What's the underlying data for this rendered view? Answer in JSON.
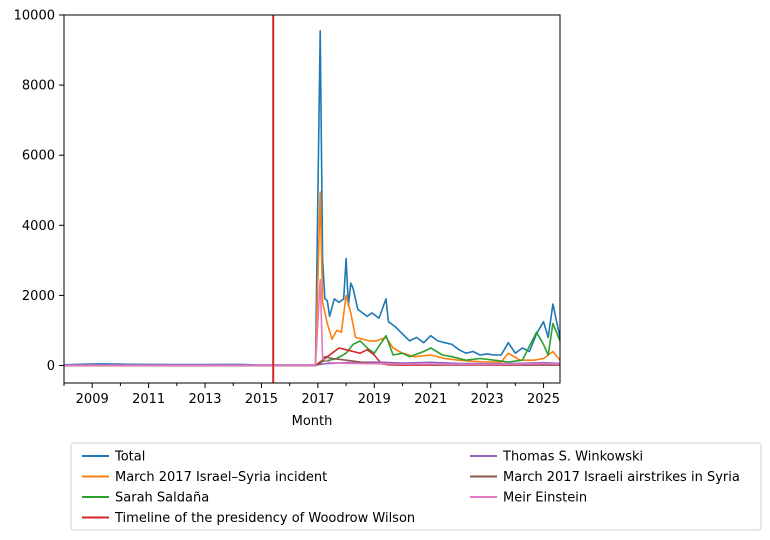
{
  "chart_data": {
    "type": "line",
    "title": "",
    "xlabel": "Month",
    "ylabel": "",
    "xlim": [
      "2008-01",
      "2025-08"
    ],
    "ylim": [
      -500,
      10000
    ],
    "x_ticks": [
      "2009",
      "2011",
      "2013",
      "2015",
      "2017",
      "2019",
      "2021",
      "2023",
      "2025"
    ],
    "y_ticks": [
      0,
      2000,
      4000,
      6000,
      8000,
      10000
    ],
    "grid": false,
    "legend_position": "below plot, two columns",
    "vertical_marker": {
      "x": "2015-06",
      "color": "#d62728"
    },
    "series": [
      {
        "name": "Total",
        "color": "#1f77b4",
        "points": [
          [
            "2008-01",
            20
          ],
          [
            "2008-06",
            30
          ],
          [
            "2009-01",
            40
          ],
          [
            "2009-06",
            45
          ],
          [
            "2010-01",
            35
          ],
          [
            "2011-01",
            30
          ],
          [
            "2012-01",
            28
          ],
          [
            "2013-01",
            25
          ],
          [
            "2014-01",
            30
          ],
          [
            "2014-06",
            25
          ],
          [
            "2015-01",
            10
          ],
          [
            "2016-01",
            10
          ],
          [
            "2016-12",
            10
          ],
          [
            "2017-02",
            9550
          ],
          [
            "2017-03",
            3000
          ],
          [
            "2017-04",
            1900
          ],
          [
            "2017-05",
            1850
          ],
          [
            "2017-06",
            1400
          ],
          [
            "2017-08",
            1900
          ],
          [
            "2017-10",
            1800
          ],
          [
            "2017-12",
            1900
          ],
          [
            "2018-01",
            3050
          ],
          [
            "2018-02",
            1700
          ],
          [
            "2018-03",
            2350
          ],
          [
            "2018-04",
            2200
          ],
          [
            "2018-06",
            1600
          ],
          [
            "2018-08",
            1500
          ],
          [
            "2018-10",
            1400
          ],
          [
            "2018-12",
            1500
          ],
          [
            "2019-03",
            1350
          ],
          [
            "2019-06",
            1900
          ],
          [
            "2019-07",
            1250
          ],
          [
            "2019-10",
            1100
          ],
          [
            "2020-01",
            900
          ],
          [
            "2020-04",
            700
          ],
          [
            "2020-07",
            800
          ],
          [
            "2020-10",
            650
          ],
          [
            "2021-01",
            850
          ],
          [
            "2021-04",
            700
          ],
          [
            "2021-07",
            650
          ],
          [
            "2021-10",
            600
          ],
          [
            "2022-01",
            450
          ],
          [
            "2022-04",
            350
          ],
          [
            "2022-07",
            400
          ],
          [
            "2022-10",
            300
          ],
          [
            "2023-01",
            330
          ],
          [
            "2023-04",
            300
          ],
          [
            "2023-07",
            300
          ],
          [
            "2023-10",
            650
          ],
          [
            "2024-01",
            350
          ],
          [
            "2024-04",
            500
          ],
          [
            "2024-07",
            400
          ],
          [
            "2024-10",
            900
          ],
          [
            "2025-01",
            1250
          ],
          [
            "2025-03",
            800
          ],
          [
            "2025-05",
            1750
          ],
          [
            "2025-08",
            800
          ]
        ]
      },
      {
        "name": "March 2017 Israel–Syria incident",
        "color": "#ff7f0e",
        "points": [
          [
            "2008-01",
            0
          ],
          [
            "2016-12",
            0
          ],
          [
            "2017-02",
            4950
          ],
          [
            "2017-03",
            1800
          ],
          [
            "2017-05",
            1200
          ],
          [
            "2017-07",
            750
          ],
          [
            "2017-09",
            1000
          ],
          [
            "2017-11",
            950
          ],
          [
            "2018-01",
            2000
          ],
          [
            "2018-03",
            1500
          ],
          [
            "2018-05",
            800
          ],
          [
            "2018-08",
            750
          ],
          [
            "2018-11",
            700
          ],
          [
            "2019-02",
            700
          ],
          [
            "2019-06",
            800
          ],
          [
            "2019-09",
            500
          ],
          [
            "2020-01",
            350
          ],
          [
            "2020-06",
            250
          ],
          [
            "2021-01",
            300
          ],
          [
            "2021-07",
            200
          ],
          [
            "2022-01",
            150
          ],
          [
            "2022-07",
            120
          ],
          [
            "2023-01",
            100
          ],
          [
            "2023-07",
            100
          ],
          [
            "2023-10",
            350
          ],
          [
            "2024-03",
            150
          ],
          [
            "2024-09",
            150
          ],
          [
            "2025-01",
            200
          ],
          [
            "2025-05",
            400
          ],
          [
            "2025-08",
            150
          ]
        ]
      },
      {
        "name": "Sarah Saldaña",
        "color": "#2ca02c",
        "points": [
          [
            "2008-01",
            5
          ],
          [
            "2016-12",
            5
          ],
          [
            "2017-03",
            120
          ],
          [
            "2017-06",
            150
          ],
          [
            "2017-09",
            200
          ],
          [
            "2018-01",
            350
          ],
          [
            "2018-04",
            600
          ],
          [
            "2018-07",
            700
          ],
          [
            "2018-10",
            500
          ],
          [
            "2019-01",
            350
          ],
          [
            "2019-06",
            850
          ],
          [
            "2019-09",
            300
          ],
          [
            "2020-01",
            350
          ],
          [
            "2020-04",
            250
          ],
          [
            "2020-10",
            400
          ],
          [
            "2021-01",
            500
          ],
          [
            "2021-06",
            300
          ],
          [
            "2021-10",
            250
          ],
          [
            "2022-04",
            150
          ],
          [
            "2022-10",
            200
          ],
          [
            "2023-04",
            150
          ],
          [
            "2023-10",
            100
          ],
          [
            "2024-04",
            150
          ],
          [
            "2024-10",
            950
          ],
          [
            "2025-01",
            600
          ],
          [
            "2025-03",
            300
          ],
          [
            "2025-05",
            1200
          ],
          [
            "2025-08",
            700
          ]
        ]
      },
      {
        "name": "Timeline of the presidency of Woodrow Wilson",
        "color": "#d62728",
        "points": [
          [
            "2008-01",
            5
          ],
          [
            "2016-12",
            5
          ],
          [
            "2017-04",
            200
          ],
          [
            "2017-07",
            350
          ],
          [
            "2017-10",
            500
          ],
          [
            "2018-01",
            450
          ],
          [
            "2018-04",
            400
          ],
          [
            "2018-07",
            350
          ],
          [
            "2018-10",
            450
          ],
          [
            "2019-01",
            300
          ],
          [
            "2019-04",
            50
          ],
          [
            "2019-07",
            20
          ],
          [
            "2020-01",
            10
          ],
          [
            "2025-08",
            10
          ]
        ]
      },
      {
        "name": "Thomas S. Winkowski",
        "color": "#9467bd",
        "points": [
          [
            "2008-01",
            10
          ],
          [
            "2016-12",
            10
          ],
          [
            "2017-04",
            50
          ],
          [
            "2018-01",
            80
          ],
          [
            "2019-01",
            100
          ],
          [
            "2020-01",
            70
          ],
          [
            "2021-01",
            90
          ],
          [
            "2022-01",
            60
          ],
          [
            "2023-01",
            50
          ],
          [
            "2024-01",
            60
          ],
          [
            "2025-01",
            80
          ],
          [
            "2025-08",
            60
          ]
        ]
      },
      {
        "name": "March 2017 Israeli airstrikes in Syria",
        "color": "#8c564b",
        "points": [
          [
            "2008-01",
            0
          ],
          [
            "2016-12",
            0
          ],
          [
            "2017-02",
            50
          ],
          [
            "2017-04",
            250
          ],
          [
            "2017-07",
            200
          ],
          [
            "2018-01",
            150
          ],
          [
            "2018-07",
            100
          ],
          [
            "2019-01",
            60
          ],
          [
            "2020-01",
            40
          ],
          [
            "2021-01",
            30
          ],
          [
            "2022-01",
            20
          ],
          [
            "2023-01",
            20
          ],
          [
            "2024-01",
            20
          ],
          [
            "2025-08",
            20
          ]
        ]
      },
      {
        "name": "Meir Einstein",
        "color": "#e377c2",
        "points": [
          [
            "2008-01",
            5
          ],
          [
            "2016-12",
            5
          ],
          [
            "2017-02",
            2450
          ],
          [
            "2017-03",
            200
          ],
          [
            "2017-06",
            80
          ],
          [
            "2018-01",
            60
          ],
          [
            "2019-01",
            50
          ],
          [
            "2020-01",
            40
          ],
          [
            "2021-01",
            40
          ],
          [
            "2022-01",
            30
          ],
          [
            "2023-01",
            30
          ],
          [
            "2024-01",
            40
          ],
          [
            "2025-01",
            50
          ],
          [
            "2025-08",
            40
          ]
        ]
      }
    ]
  }
}
